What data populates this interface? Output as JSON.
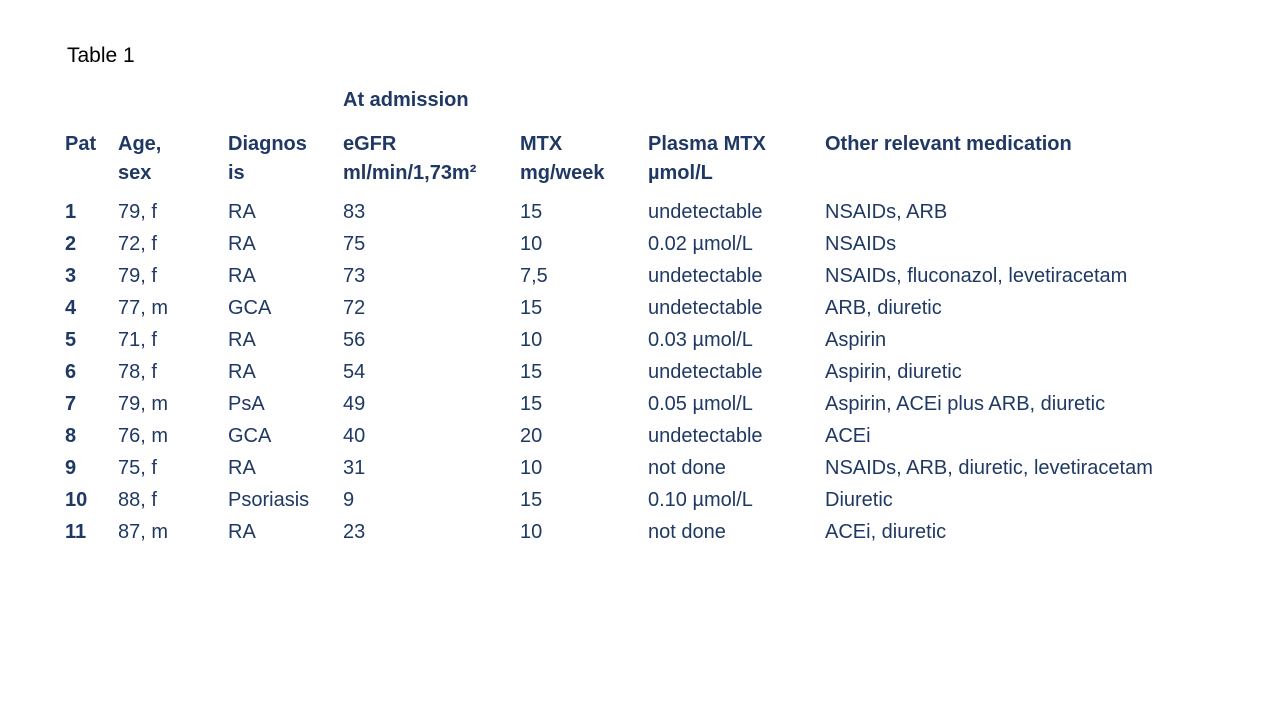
{
  "title": "Table 1",
  "colors": {
    "table_text": "#1F3864",
    "title_text": "#000000",
    "background": "#FFFFFF"
  },
  "table": {
    "group_header": "At admission",
    "columns": [
      {
        "label": "Pat"
      },
      {
        "label": "Age,\nsex"
      },
      {
        "label": "Diagnos\nis"
      },
      {
        "label": "eGFR\nml/min/1,73m²"
      },
      {
        "label": "MTX\nmg/week"
      },
      {
        "label": "Plasma MTX\nµmol/L"
      },
      {
        "label": "Other relevant medication"
      }
    ],
    "rows": [
      [
        "1",
        "79, f",
        "RA",
        "83",
        "15",
        "undetectable",
        "NSAIDs, ARB"
      ],
      [
        "2",
        "72, f",
        "RA",
        "75",
        "10",
        "0.02 µmol/L",
        "NSAIDs"
      ],
      [
        "3",
        "79, f",
        "RA",
        "73",
        "7,5",
        "undetectable",
        "NSAIDs, fluconazol, levetiracetam"
      ],
      [
        "4",
        "77, m",
        "GCA",
        "72",
        "15",
        "undetectable",
        "ARB, diuretic"
      ],
      [
        "5",
        "71, f",
        "RA",
        "56",
        "10",
        "0.03 µmol/L",
        "Aspirin"
      ],
      [
        "6",
        "78, f",
        "RA",
        "54",
        "15",
        "undetectable",
        "Aspirin, diuretic"
      ],
      [
        "7",
        "79, m",
        "PsA",
        "49",
        "15",
        "0.05 µmol/L",
        "Aspirin, ACEi plus ARB, diuretic"
      ],
      [
        "8",
        "76, m",
        "GCA",
        "40",
        "20",
        "undetectable",
        "ACEi"
      ],
      [
        "9",
        "75, f",
        "RA",
        "31",
        "10",
        "not done",
        "NSAIDs, ARB, diuretic, levetiracetam"
      ],
      [
        "10",
        "88, f",
        "Psoriasis",
        "9",
        "15",
        "0.10 µmol/L",
        "Diuretic"
      ],
      [
        "11",
        "87, m",
        "RA",
        "23",
        "10",
        "not done",
        "ACEi, diuretic"
      ]
    ]
  }
}
